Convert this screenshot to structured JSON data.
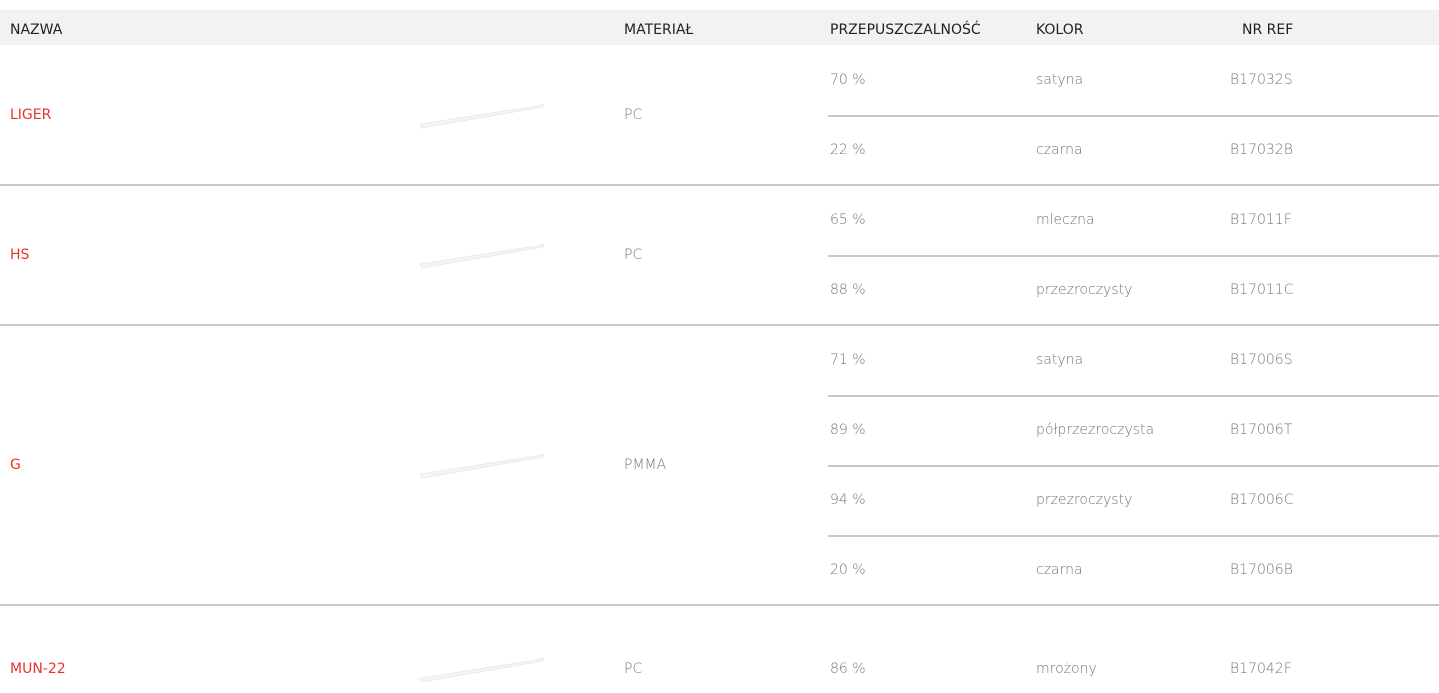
{
  "table": {
    "headers": [
      "NAZWA",
      "MATERIAŁ",
      "PRZEPUSZCZALNOŚĆ",
      "KOLOR",
      "NR REF"
    ],
    "rows": [
      {
        "name": "LIGER",
        "material": "PC",
        "variants": [
          [
            "70 %",
            "satyna",
            "B17032S"
          ],
          [
            "22 %",
            "czarna",
            "B17032B"
          ]
        ]
      },
      {
        "name": "HS",
        "material": "PC",
        "variants": [
          [
            "65 %",
            "mleczna",
            "B17011F"
          ],
          [
            "88 %",
            "przezroczysty",
            "B17011C"
          ]
        ]
      },
      {
        "name": "G",
        "material": "PMMA",
        "variants": [
          [
            "71 %",
            "satyna",
            "B17006S"
          ],
          [
            "89 %",
            "półprzezroczysta",
            "B17006T"
          ],
          [
            "94 %",
            "przezroczysty",
            "B17006C"
          ],
          [
            "20 %",
            "czarna",
            "B17006B"
          ]
        ]
      },
      {
        "name": "MUN-22",
        "material": "PC",
        "variants": [
          [
            "86 %",
            "mrożony",
            "B17042F"
          ]
        ]
      }
    ]
  }
}
